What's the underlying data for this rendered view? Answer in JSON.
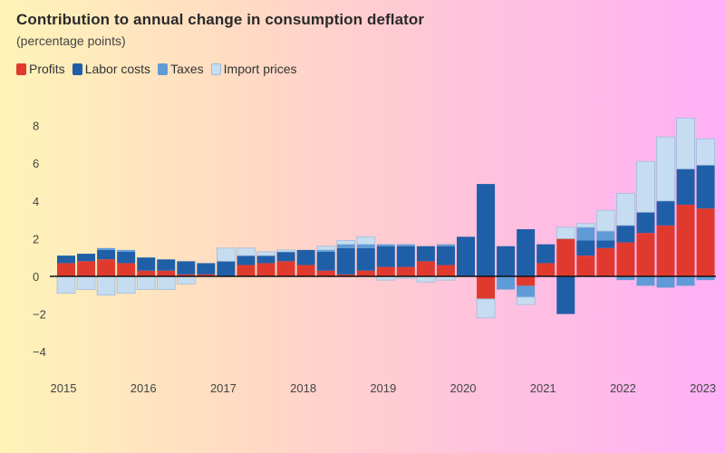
{
  "title": "Contribution to annual change in consumption deflator",
  "subtitle": "(percentage points)",
  "legend": [
    {
      "label": "Profits",
      "color": "#e03a2f"
    },
    {
      "label": "Labor costs",
      "color": "#1f5fa8"
    },
    {
      "label": "Taxes",
      "color": "#5f9bd6"
    },
    {
      "label": "Import prices",
      "color": "#c6dcf0"
    }
  ],
  "chart_data": {
    "type": "bar",
    "stacked": true,
    "title": "Contribution to annual change in consumption deflator",
    "subtitle": "(percentage points)",
    "ylim": [
      -5,
      9
    ],
    "yticks": [
      8,
      6,
      4,
      2,
      0,
      -2,
      -4
    ],
    "xticks": [
      "2015",
      "2016",
      "2017",
      "2018",
      "2019",
      "2020",
      "2021",
      "2022",
      "2023"
    ],
    "categories": [
      "2015Q1",
      "2015Q2",
      "2015Q3",
      "2015Q4",
      "2016Q1",
      "2016Q2",
      "2016Q3",
      "2016Q4",
      "2017Q1",
      "2017Q2",
      "2017Q3",
      "2017Q4",
      "2018Q1",
      "2018Q2",
      "2018Q3",
      "2018Q4",
      "2019Q1",
      "2019Q2",
      "2019Q3",
      "2019Q4",
      "2020Q1",
      "2020Q2",
      "2020Q3",
      "2020Q4",
      "2021Q1",
      "2021Q2",
      "2021Q3",
      "2021Q4",
      "2022Q1",
      "2022Q2",
      "2022Q3",
      "2022Q4",
      "2023Q1"
    ],
    "series": [
      {
        "name": "Profits",
        "color": "#e03a2f",
        "values": [
          0.7,
          0.8,
          0.9,
          0.7,
          0.3,
          0.3,
          0.1,
          0.1,
          0.0,
          0.6,
          0.7,
          0.8,
          0.6,
          0.3,
          0.1,
          0.3,
          0.5,
          0.5,
          0.8,
          0.6,
          0.0,
          -1.2,
          0.0,
          -0.5,
          0.7,
          2.0,
          1.1,
          1.5,
          1.8,
          2.3,
          2.7,
          3.8,
          3.6
        ]
      },
      {
        "name": "Labor costs",
        "color": "#1f5fa8",
        "values": [
          0.4,
          0.4,
          0.5,
          0.6,
          0.7,
          0.6,
          0.7,
          0.6,
          0.8,
          0.5,
          0.4,
          0.5,
          0.8,
          1.0,
          1.4,
          1.2,
          1.1,
          1.1,
          0.8,
          1.0,
          2.1,
          4.9,
          1.6,
          2.5,
          1.0,
          -2.0,
          0.8,
          0.4,
          0.9,
          1.1,
          1.3,
          1.9,
          2.3
        ]
      },
      {
        "name": "Taxes",
        "color": "#5f9bd6",
        "values": [
          0.0,
          0.0,
          0.1,
          0.1,
          0.0,
          0.0,
          0.0,
          0.0,
          0.0,
          0.0,
          0.0,
          0.0,
          0.0,
          0.1,
          0.2,
          0.2,
          0.1,
          0.1,
          0.0,
          0.1,
          0.0,
          0.0,
          -0.7,
          -0.6,
          0.0,
          0.0,
          0.7,
          0.5,
          -0.2,
          -0.5,
          -0.6,
          -0.5,
          -0.2
        ]
      },
      {
        "name": "Import prices",
        "color": "#c6dcf0",
        "values": [
          -0.9,
          -0.7,
          -1.0,
          -0.9,
          -0.7,
          -0.7,
          -0.4,
          0.0,
          0.7,
          0.4,
          0.2,
          0.1,
          0.0,
          0.2,
          0.2,
          0.4,
          -0.2,
          -0.1,
          -0.3,
          -0.2,
          0.0,
          -1.0,
          0.0,
          -0.4,
          0.0,
          0.6,
          0.2,
          1.1,
          1.7,
          2.7,
          3.4,
          2.7,
          1.4
        ]
      }
    ]
  }
}
